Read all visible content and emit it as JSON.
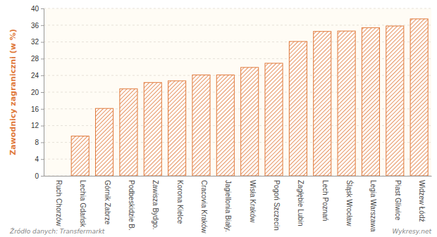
{
  "chart_data": {
    "type": "bar",
    "y_label": "Zawodnicy zagraniczni (w %)",
    "categories": [
      "Ruch Chorzów",
      "Lechia Gdańsk",
      "Górnik Zabrze",
      "Podbeskidzie B.",
      "Zawisza Bydgo.",
      "Korona Kielce",
      "Cracovia Kraków",
      "Jagiellonia Biały.",
      "Wisła Kraków",
      "Pogoń Szczecin",
      "Zagłębie Lubin",
      "Lech Poznań",
      "Śląsk Wrocław",
      "Legia Warszawa",
      "Piast Gliwice",
      "Widzew Łódź"
    ],
    "values": [
      0,
      9.5,
      16.1,
      20.8,
      22.3,
      22.7,
      24.1,
      24.1,
      25.9,
      26.9,
      32.1,
      34.5,
      34.6,
      35.4,
      35.8,
      37.5
    ],
    "color": "#e0793a",
    "ylim": [
      0,
      40
    ],
    "yticks": [
      0,
      4,
      8,
      12,
      16,
      20,
      24,
      28,
      32,
      36,
      40
    ],
    "grid": true,
    "annotations": [
      "Źródło danych: Transfermarkt",
      "Wykresy.net"
    ]
  }
}
